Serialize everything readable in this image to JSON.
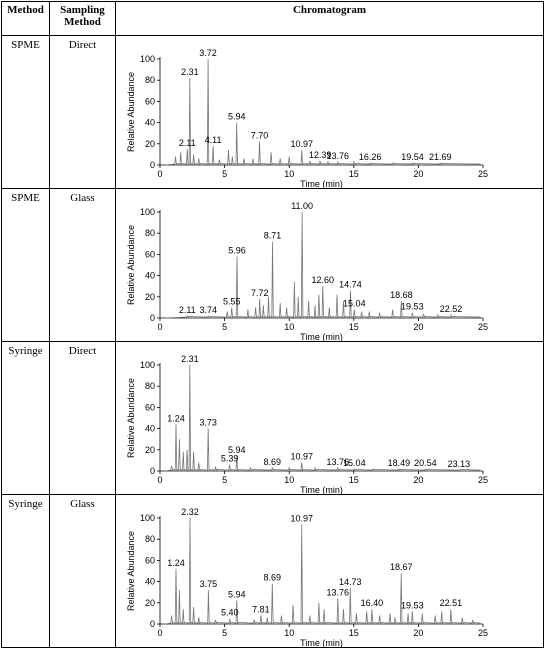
{
  "table": {
    "headers": [
      "Method",
      "Sampling Method",
      "Chromatogram"
    ],
    "rows": [
      {
        "method": "SPME",
        "sampling": "Direct"
      },
      {
        "method": "SPME",
        "sampling": "Glass"
      },
      {
        "method": "Syringe",
        "sampling": "Direct"
      },
      {
        "method": "Syringe",
        "sampling": "Glass"
      }
    ]
  },
  "chart_data": [
    {
      "type": "line",
      "xlabel": "Time (min)",
      "ylabel": "Relative Abundance",
      "xlim": [
        0,
        25
      ],
      "ylim": [
        0,
        100
      ],
      "xticks": [
        0,
        5,
        10,
        15,
        20,
        25
      ],
      "yticks": [
        0,
        20,
        40,
        60,
        80,
        100
      ],
      "peaks": [
        {
          "x": 1.2,
          "y": 8
        },
        {
          "x": 1.6,
          "y": 12
        },
        {
          "x": 2.11,
          "y": 15
        },
        {
          "x": 2.31,
          "y": 82
        },
        {
          "x": 2.6,
          "y": 10
        },
        {
          "x": 3.0,
          "y": 6
        },
        {
          "x": 3.72,
          "y": 100
        },
        {
          "x": 4.11,
          "y": 18
        },
        {
          "x": 4.6,
          "y": 5
        },
        {
          "x": 5.3,
          "y": 14
        },
        {
          "x": 5.6,
          "y": 8
        },
        {
          "x": 5.94,
          "y": 40
        },
        {
          "x": 6.5,
          "y": 6
        },
        {
          "x": 7.2,
          "y": 6
        },
        {
          "x": 7.7,
          "y": 22
        },
        {
          "x": 8.6,
          "y": 12
        },
        {
          "x": 9.3,
          "y": 6
        },
        {
          "x": 10.0,
          "y": 8
        },
        {
          "x": 10.97,
          "y": 14
        },
        {
          "x": 11.6,
          "y": 4
        },
        {
          "x": 12.39,
          "y": 4
        },
        {
          "x": 13.0,
          "y": 3
        },
        {
          "x": 13.76,
          "y": 3
        },
        {
          "x": 15.0,
          "y": 3
        },
        {
          "x": 16.26,
          "y": 2
        },
        {
          "x": 18.0,
          "y": 2
        },
        {
          "x": 19.54,
          "y": 2
        },
        {
          "x": 21.69,
          "y": 2
        }
      ],
      "labels": [
        {
          "x": 2.11,
          "text": "2.11",
          "y": 15
        },
        {
          "x": 2.31,
          "text": "2.31",
          "y": 82
        },
        {
          "x": 3.72,
          "text": "3.72",
          "y": 100
        },
        {
          "x": 4.11,
          "text": "4.11",
          "y": 18
        },
        {
          "x": 5.94,
          "text": "5.94",
          "y": 40
        },
        {
          "x": 7.7,
          "text": "7.70",
          "y": 22
        },
        {
          "x": 10.97,
          "text": "10.97",
          "y": 14
        },
        {
          "x": 12.39,
          "text": "12.39",
          "y": 4
        },
        {
          "x": 13.76,
          "text": "13.76",
          "y": 3
        },
        {
          "x": 16.26,
          "text": "16.26",
          "y": 2
        },
        {
          "x": 19.54,
          "text": "19.54",
          "y": 2
        },
        {
          "x": 21.69,
          "text": "21.69",
          "y": 2
        }
      ]
    },
    {
      "type": "line",
      "xlabel": "Time (min)",
      "ylabel": "Relative Abundance",
      "xlim": [
        0,
        25
      ],
      "ylim": [
        0,
        100
      ],
      "xticks": [
        0,
        5,
        10,
        15,
        20,
        25
      ],
      "yticks": [
        0,
        20,
        40,
        60,
        80,
        100
      ],
      "peaks": [
        {
          "x": 2.11,
          "y": 2
        },
        {
          "x": 3.74,
          "y": 2
        },
        {
          "x": 5.2,
          "y": 6
        },
        {
          "x": 5.55,
          "y": 10
        },
        {
          "x": 5.96,
          "y": 58
        },
        {
          "x": 6.8,
          "y": 8
        },
        {
          "x": 7.4,
          "y": 10
        },
        {
          "x": 7.72,
          "y": 18
        },
        {
          "x": 8.0,
          "y": 12
        },
        {
          "x": 8.4,
          "y": 20
        },
        {
          "x": 8.71,
          "y": 72
        },
        {
          "x": 9.3,
          "y": 14
        },
        {
          "x": 9.8,
          "y": 10
        },
        {
          "x": 10.4,
          "y": 34
        },
        {
          "x": 10.7,
          "y": 20
        },
        {
          "x": 11.0,
          "y": 100
        },
        {
          "x": 11.5,
          "y": 16
        },
        {
          "x": 12.0,
          "y": 12
        },
        {
          "x": 12.3,
          "y": 22
        },
        {
          "x": 12.6,
          "y": 30
        },
        {
          "x": 13.1,
          "y": 10
        },
        {
          "x": 13.7,
          "y": 22
        },
        {
          "x": 14.2,
          "y": 16
        },
        {
          "x": 14.74,
          "y": 26
        },
        {
          "x": 15.04,
          "y": 8
        },
        {
          "x": 15.6,
          "y": 6
        },
        {
          "x": 16.2,
          "y": 6
        },
        {
          "x": 17.0,
          "y": 5
        },
        {
          "x": 18.0,
          "y": 8
        },
        {
          "x": 18.68,
          "y": 16
        },
        {
          "x": 19.53,
          "y": 5
        },
        {
          "x": 20.4,
          "y": 4
        },
        {
          "x": 21.5,
          "y": 3
        },
        {
          "x": 22.52,
          "y": 3
        }
      ],
      "labels": [
        {
          "x": 2.11,
          "text": "2.11",
          "y": 2
        },
        {
          "x": 3.74,
          "text": "3.74",
          "y": 2
        },
        {
          "x": 5.55,
          "text": "5.55",
          "y": 10
        },
        {
          "x": 5.96,
          "text": "5.96",
          "y": 58
        },
        {
          "x": 7.72,
          "text": "7.72",
          "y": 18
        },
        {
          "x": 8.71,
          "text": "8.71",
          "y": 72
        },
        {
          "x": 11.0,
          "text": "11.00",
          "y": 100
        },
        {
          "x": 12.6,
          "text": "12.60",
          "y": 30
        },
        {
          "x": 14.74,
          "text": "14.74",
          "y": 26
        },
        {
          "x": 15.04,
          "text": "15.04",
          "y": 8
        },
        {
          "x": 18.68,
          "text": "18.68",
          "y": 16
        },
        {
          "x": 19.53,
          "text": "19.53",
          "y": 5
        },
        {
          "x": 22.52,
          "text": "22.52",
          "y": 3
        }
      ]
    },
    {
      "type": "line",
      "xlabel": "Time (min)",
      "ylabel": "Relative Abundance",
      "xlim": [
        0,
        25
      ],
      "ylim": [
        0,
        100
      ],
      "xticks": [
        0,
        5,
        10,
        15,
        20,
        25
      ],
      "yticks": [
        0,
        20,
        40,
        60,
        80,
        100
      ],
      "peaks": [
        {
          "x": 0.9,
          "y": 5
        },
        {
          "x": 1.24,
          "y": 44
        },
        {
          "x": 1.5,
          "y": 30
        },
        {
          "x": 1.8,
          "y": 18
        },
        {
          "x": 2.1,
          "y": 20
        },
        {
          "x": 2.31,
          "y": 100
        },
        {
          "x": 2.6,
          "y": 18
        },
        {
          "x": 3.0,
          "y": 8
        },
        {
          "x": 3.73,
          "y": 40
        },
        {
          "x": 4.3,
          "y": 4
        },
        {
          "x": 5.39,
          "y": 6
        },
        {
          "x": 5.94,
          "y": 14
        },
        {
          "x": 7.0,
          "y": 3
        },
        {
          "x": 8.69,
          "y": 3
        },
        {
          "x": 10.0,
          "y": 3
        },
        {
          "x": 10.97,
          "y": 8
        },
        {
          "x": 12.0,
          "y": 3
        },
        {
          "x": 13.76,
          "y": 3
        },
        {
          "x": 15.04,
          "y": 2
        },
        {
          "x": 16.5,
          "y": 2
        },
        {
          "x": 18.49,
          "y": 2
        },
        {
          "x": 20.54,
          "y": 2
        },
        {
          "x": 23.13,
          "y": 1
        }
      ],
      "labels": [
        {
          "x": 1.24,
          "text": "1.24",
          "y": 44
        },
        {
          "x": 2.31,
          "text": "2.31",
          "y": 100
        },
        {
          "x": 3.73,
          "text": "3.73",
          "y": 40
        },
        {
          "x": 5.39,
          "text": "5.39",
          "y": 6
        },
        {
          "x": 5.94,
          "text": "5.94",
          "y": 14
        },
        {
          "x": 8.69,
          "text": "8.69",
          "y": 3
        },
        {
          "x": 10.97,
          "text": "10.97",
          "y": 8
        },
        {
          "x": 13.76,
          "text": "13.76",
          "y": 3
        },
        {
          "x": 15.04,
          "text": "15.04",
          "y": 2
        },
        {
          "x": 18.49,
          "text": "18.49",
          "y": 2
        },
        {
          "x": 20.54,
          "text": "20.54",
          "y": 2
        },
        {
          "x": 23.13,
          "text": "23.13",
          "y": 1
        }
      ]
    },
    {
      "type": "line",
      "xlabel": "Time (min)",
      "ylabel": "Relative Abundance",
      "xlim": [
        0,
        25
      ],
      "ylim": [
        0,
        100
      ],
      "xticks": [
        0,
        5,
        10,
        15,
        20,
        25
      ],
      "yticks": [
        0,
        20,
        40,
        60,
        80,
        100
      ],
      "peaks": [
        {
          "x": 0.9,
          "y": 8
        },
        {
          "x": 1.24,
          "y": 52
        },
        {
          "x": 1.5,
          "y": 32
        },
        {
          "x": 1.8,
          "y": 14
        },
        {
          "x": 2.32,
          "y": 100
        },
        {
          "x": 2.6,
          "y": 16
        },
        {
          "x": 3.0,
          "y": 6
        },
        {
          "x": 3.75,
          "y": 32
        },
        {
          "x": 4.3,
          "y": 4
        },
        {
          "x": 5.4,
          "y": 5
        },
        {
          "x": 5.94,
          "y": 22
        },
        {
          "x": 7.3,
          "y": 4
        },
        {
          "x": 7.81,
          "y": 8
        },
        {
          "x": 8.3,
          "y": 6
        },
        {
          "x": 8.69,
          "y": 38
        },
        {
          "x": 9.4,
          "y": 8
        },
        {
          "x": 10.3,
          "y": 18
        },
        {
          "x": 10.97,
          "y": 94
        },
        {
          "x": 11.6,
          "y": 8
        },
        {
          "x": 12.3,
          "y": 20
        },
        {
          "x": 12.7,
          "y": 14
        },
        {
          "x": 13.76,
          "y": 24
        },
        {
          "x": 14.2,
          "y": 14
        },
        {
          "x": 14.73,
          "y": 34
        },
        {
          "x": 15.2,
          "y": 10
        },
        {
          "x": 16.0,
          "y": 12
        },
        {
          "x": 16.4,
          "y": 14
        },
        {
          "x": 17.0,
          "y": 8
        },
        {
          "x": 17.8,
          "y": 10
        },
        {
          "x": 18.2,
          "y": 6
        },
        {
          "x": 18.67,
          "y": 48
        },
        {
          "x": 19.2,
          "y": 10
        },
        {
          "x": 19.53,
          "y": 12
        },
        {
          "x": 20.3,
          "y": 10
        },
        {
          "x": 21.3,
          "y": 8
        },
        {
          "x": 21.8,
          "y": 12
        },
        {
          "x": 22.51,
          "y": 14
        },
        {
          "x": 23.4,
          "y": 6
        },
        {
          "x": 24.2,
          "y": 4
        }
      ],
      "labels": [
        {
          "x": 1.24,
          "text": "1.24",
          "y": 52
        },
        {
          "x": 2.32,
          "text": "2.32",
          "y": 100
        },
        {
          "x": 3.75,
          "text": "3.75",
          "y": 32
        },
        {
          "x": 5.4,
          "text": "5.40",
          "y": 5
        },
        {
          "x": 5.94,
          "text": "5.94",
          "y": 22
        },
        {
          "x": 7.81,
          "text": "7.81",
          "y": 8
        },
        {
          "x": 8.69,
          "text": "8.69",
          "y": 38
        },
        {
          "x": 10.97,
          "text": "10.97",
          "y": 94
        },
        {
          "x": 13.76,
          "text": "13.76",
          "y": 24
        },
        {
          "x": 14.73,
          "text": "14.73",
          "y": 34
        },
        {
          "x": 16.4,
          "text": "16.40",
          "y": 14
        },
        {
          "x": 18.67,
          "text": "18.67",
          "y": 48
        },
        {
          "x": 19.53,
          "text": "19.53",
          "y": 12
        },
        {
          "x": 22.51,
          "text": "22.51",
          "y": 14
        }
      ]
    }
  ]
}
